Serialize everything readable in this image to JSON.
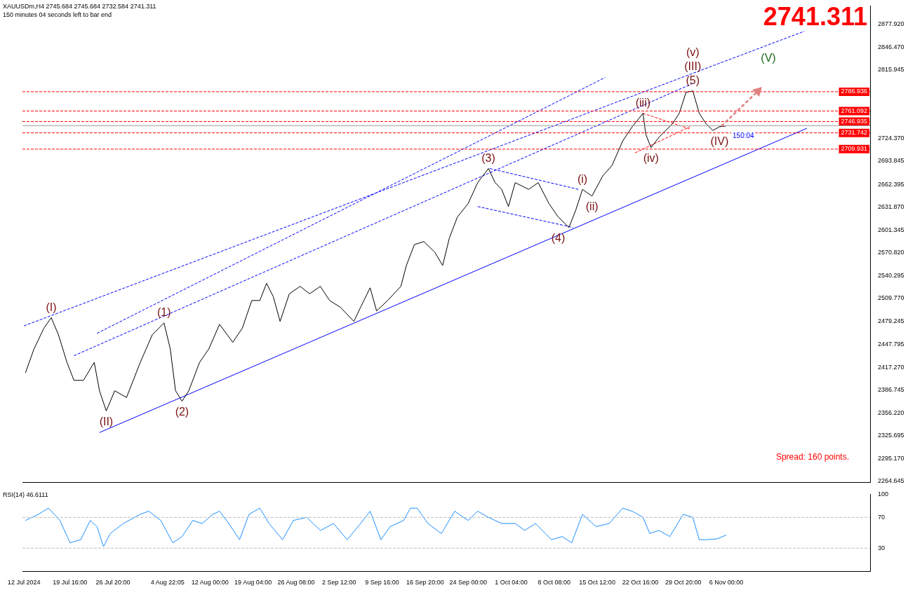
{
  "chart_data": [
    {
      "type": "line",
      "title": "XAUUSDm,H4  2745.684 2745.684 2732.584 2741.311",
      "subtitle": "150 minutes 04 seconds left to bar end",
      "xlim": [
        "2024-07-11T18:00",
        "2024-11-29T23:00"
      ],
      "ylim": [
        2263,
        2902
      ],
      "yticks": [
        {
          "value": 2877.92,
          "label": "2877.920"
        },
        {
          "value": 2846.47,
          "label": "2846.470"
        },
        {
          "value": 2815.945,
          "label": "2815.945"
        },
        {
          "value": 2724.37,
          "label": "2724.370"
        },
        {
          "value": 2693.845,
          "label": "2693.845"
        },
        {
          "value": 2662.395,
          "label": "2662.395"
        },
        {
          "value": 2631.87,
          "label": "2631.870"
        },
        {
          "value": 2601.345,
          "label": "2601.345"
        },
        {
          "value": 2570.82,
          "label": "2570.820"
        },
        {
          "value": 2540.295,
          "label": "2540.295"
        },
        {
          "value": 2509.77,
          "label": "2509.770"
        },
        {
          "value": 2479.245,
          "label": "2479.245"
        },
        {
          "value": 2447.795,
          "label": "2447.795"
        },
        {
          "value": 2417.27,
          "label": "2417.270"
        },
        {
          "value": 2386.745,
          "label": "2386.745"
        },
        {
          "value": 2356.22,
          "label": "2356.220"
        },
        {
          "value": 2325.695,
          "label": "2325.695"
        },
        {
          "value": 2295.17,
          "label": "2295.170"
        },
        {
          "value": 2264.645,
          "label": "2264.645"
        }
      ],
      "tick_labels": "y",
      "series": [
        {
          "color": "#000000",
          "x": [
            "2024-07-12T06:00",
            "2024-07-13T16:00",
            "2024-07-15T08:00",
            "2024-07-16T13:00",
            "2024-07-17T18:00",
            "2024-07-19T04:00",
            "2024-07-20T08:00",
            "2024-07-21T22:00",
            "2024-07-23T17:00",
            "2024-07-24T14:00",
            "2024-07-25T17:00",
            "2024-07-27T03:00",
            "2024-07-29T02:00",
            "2024-07-31T09:00",
            "2024-08-02T09:00",
            "2024-08-04T08:00",
            "2024-08-05T09:00",
            "2024-08-06T06:00",
            "2024-08-07T08:00",
            "2024-08-08T11:00",
            "2024-08-10T06:00",
            "2024-08-11T19:00",
            "2024-08-13T14:00",
            "2024-08-15T19:00",
            "2024-08-17T09:00",
            "2024-08-18T23:00",
            "2024-08-20T07:00",
            "2024-08-21T10:00",
            "2024-08-22T13:00",
            "2024-08-23T16:00",
            "2024-08-25T05:00",
            "2024-08-27T00:00",
            "2024-08-28T14:00",
            "2024-08-30T09:00",
            "2024-08-31T22:00",
            "2024-09-02T17:00",
            "2024-09-04T23:00",
            "2024-09-06T02:00",
            "2024-09-07T16:00",
            "2024-09-08T18:00",
            "2024-09-10T14:00",
            "2024-09-12T19:00",
            "2024-09-13T17:00",
            "2024-09-15T01:00",
            "2024-09-16T15:00",
            "2024-09-18T10:00",
            "2024-09-19T18:00",
            "2024-09-20T21:00",
            "2024-09-22T05:00",
            "2024-09-24T00:00",
            "2024-09-25T14:00",
            "2024-09-27T09:00",
            "2024-09-28T12:00",
            "2024-09-29T14:00",
            "2024-09-30T17:00",
            "2024-10-01T20:00",
            "2024-10-04T02:00",
            "2024-10-05T16:00",
            "2024-10-07T11:00",
            "2024-10-09T00:00",
            "2024-10-10T19:00",
            "2024-10-11T22:00",
            "2024-10-13T01:00",
            "2024-10-14T15:00",
            "2024-10-16T10:00",
            "2024-10-17T23:00",
            "2024-10-19T18:00",
            "2024-10-21T08:00",
            "2024-10-23T03:00",
            "2024-10-23T14:00",
            "2024-10-24T11:00",
            "2024-10-25T19:00",
            "2024-10-28T01:00",
            "2024-10-29T04:00",
            "2024-10-30T07:00",
            "2024-10-31T10:00",
            "2024-11-01T12:00",
            "2024-11-02T15:00",
            "2024-11-03T18:00",
            "2024-11-04T21:00",
            "2024-11-06T00:00"
          ],
          "values": [
            2410,
            2442,
            2470,
            2484,
            2461,
            2424,
            2400,
            2400,
            2424,
            2386,
            2359,
            2386,
            2377,
            2424,
            2461,
            2477,
            2442,
            2386,
            2372,
            2386,
            2424,
            2442,
            2475,
            2451,
            2470,
            2507,
            2507,
            2530,
            2512,
            2479,
            2516,
            2526,
            2516,
            2526,
            2507,
            2498,
            2479,
            2498,
            2524,
            2493,
            2507,
            2526,
            2554,
            2582,
            2586,
            2572,
            2554,
            2591,
            2619,
            2637,
            2665,
            2684,
            2665,
            2656,
            2633,
            2665,
            2656,
            2665,
            2637,
            2619,
            2605,
            2628,
            2656,
            2647,
            2674,
            2688,
            2721,
            2740,
            2758,
            2730,
            2712,
            2726,
            2744,
            2758,
            2786,
            2788,
            2758,
            2744,
            2735,
            2740,
            2741
          ]
        },
        {
          "type": "line",
          "color": "#0000ff",
          "line_style": "solid",
          "x": [
            "2024-07-24T14:00",
            "2024-11-19T11:00"
          ],
          "values": [
            2330,
            2738
          ]
        },
        {
          "type": "line",
          "color": "#0000ff",
          "line_style": "dashed",
          "x": [
            "2024-07-12T00:00",
            "2024-11-19T00:00"
          ],
          "values": [
            2473,
            2868
          ]
        },
        {
          "type": "line",
          "color": "#0000ff",
          "line_style": "dashed",
          "x": [
            "2024-07-24T04:00",
            "2024-10-16T20:00"
          ],
          "values": [
            2463,
            2806
          ]
        },
        {
          "type": "line",
          "color": "#0000ff",
          "line_style": "dashed",
          "x": [
            "2024-07-20T08:00",
            "2024-10-31T10:00"
          ],
          "values": [
            2433,
            2798
          ]
        },
        {
          "type": "line",
          "color": "#0000ff",
          "line_style": "dashed",
          "x": [
            "2024-09-27T14:00",
            "2024-10-12T09:00"
          ],
          "values": [
            2684,
            2656
          ]
        },
        {
          "type": "line",
          "color": "#0000ff",
          "line_style": "dashed",
          "x": [
            "2024-09-25T14:00",
            "2024-10-11T11:00"
          ],
          "values": [
            2633,
            2605
          ]
        },
        {
          "type": "line",
          "color": "#ff0000",
          "line_style": "dashed",
          "x": [
            "2024-10-21T19:00",
            "2024-10-30T23:00"
          ],
          "values": [
            2705,
            2740
          ]
        },
        {
          "type": "line",
          "color": "#ff0000",
          "line_style": "dashed",
          "x": [
            "2024-10-23T03:00",
            "2024-10-30T23:00"
          ],
          "values": [
            2758,
            2737
          ]
        }
      ],
      "ref_lines": [
        {
          "axis": "y",
          "value": 2786.936,
          "label": "2786.936",
          "color": "#ff0000",
          "line_style": "dashed"
        },
        {
          "axis": "y",
          "value": 2761.092,
          "label": "2761.092",
          "color": "#ff0000",
          "line_style": "dashed"
        },
        {
          "axis": "y",
          "value": 2746.935,
          "label": "2746.935",
          "color": "#ff0000",
          "line_style": "dashed"
        },
        {
          "axis": "y",
          "value": 2741.311,
          "color": "#a0a0a0",
          "line_style": "solid"
        },
        {
          "axis": "y",
          "value": 2731.742,
          "label": "2731.742",
          "color": "#ff0000",
          "line_style": "dashed"
        },
        {
          "axis": "y",
          "value": 2709.931,
          "label": "2709.931",
          "color": "#ff0000",
          "line_style": "dashed"
        }
      ],
      "annotations": [
        "2741.311",
        "Spread: 160 points.",
        "(V)",
        {
          "text": "150:04",
          "x": "2024-11-06T00:00",
          "y": 2741
        },
        {
          "text": "(I)",
          "x": "2024-07-16T13:00",
          "y": 2484
        },
        {
          "text": "(II)",
          "x": "2024-07-25T17:00",
          "y": 2359
        },
        {
          "text": "(1)",
          "x": "2024-08-04T08:00",
          "y": 2477
        },
        {
          "text": "(2)",
          "x": "2024-08-07T08:00",
          "y": 2372
        },
        {
          "text": "(3)",
          "x": "2024-09-27T09:00",
          "y": 2684
        },
        {
          "text": "(4)",
          "x": "2024-10-09T00:00",
          "y": 2605
        },
        {
          "text": "(5)",
          "x": "2024-10-31T10:00",
          "y": 2788
        },
        {
          "text": "(III)",
          "x": "2024-10-31T10:00",
          "y": 2788
        },
        {
          "text": "(IV)",
          "x": "2024-11-04T21:00",
          "y": 2735
        },
        {
          "text": "(i)",
          "x": "2024-10-13T01:00",
          "y": 2656
        },
        {
          "text": "(ii)",
          "x": "2024-10-14T15:00",
          "y": 2647
        },
        {
          "text": "(iii)",
          "x": "2024-10-23T03:00",
          "y": 2758
        },
        {
          "text": "(iv)",
          "x": "2024-10-24T11:00",
          "y": 2712
        },
        {
          "text": "(v)",
          "x": "2024-10-31T10:00",
          "y": 2788
        }
      ]
    },
    {
      "type": "line",
      "title": "RSI(14) 46.6111",
      "xlim": [
        "2024-07-11T18:00",
        "2024-11-29T23:00"
      ],
      "xticks": [
        {
          "value": "2024-07-12T00:00",
          "label": "12 Jul 2024"
        },
        {
          "value": "2024-07-19T16:00",
          "label": "19 Jul 16:00"
        },
        {
          "value": "2024-07-26T20:00",
          "label": "26 Jul 20:00"
        },
        {
          "value": "2024-08-04T22:05",
          "label": "4 Aug 22:05"
        },
        {
          "value": "2024-08-12T00:00",
          "label": "12 Aug 00:00"
        },
        {
          "value": "2024-08-19T04:00",
          "label": "19 Aug 04:00"
        },
        {
          "value": "2024-08-26T08:00",
          "label": "26 Aug 08:00"
        },
        {
          "value": "2024-09-02T12:00",
          "label": "2 Sep 12:00"
        },
        {
          "value": "2024-09-09T16:00",
          "label": "9 Sep 16:00"
        },
        {
          "value": "2024-09-16T20:00",
          "label": "16 Sep 20:00"
        },
        {
          "value": "2024-09-24T00:00",
          "label": "24 Sep 00:00"
        },
        {
          "value": "2024-10-01T04:00",
          "label": "1 Oct 04:00"
        },
        {
          "value": "2024-10-08T08:00",
          "label": "8 Oct 08:00"
        },
        {
          "value": "2024-10-15T12:00",
          "label": "15 Oct 12:00"
        },
        {
          "value": "2024-10-22T16:00",
          "label": "22 Oct 16:00"
        },
        {
          "value": "2024-10-29T20:00",
          "label": "29 Oct 20:00"
        },
        {
          "value": "2024-11-06T00:00",
          "label": "6 Nov 00:00"
        }
      ],
      "ylim": [
        0,
        100
      ],
      "yticks": [
        30,
        70,
        100
      ],
      "series": [
        {
          "color": "#1e90ff",
          "x": [
            "2024-07-12T06:00",
            "2024-07-14T10:00",
            "2024-07-16T02:00",
            "2024-07-18T00:00",
            "2024-07-19T16:00",
            "2024-07-21T11:00",
            "2024-07-23T01:00",
            "2024-07-24T04:00",
            "2024-07-25T06:00",
            "2024-07-26T09:00",
            "2024-07-28T13:00",
            "2024-07-31T09:00",
            "2024-08-01T19:00",
            "2024-08-03T19:00",
            "2024-08-05T19:00",
            "2024-08-07T08:00",
            "2024-08-09T03:00",
            "2024-08-10T16:00",
            "2024-08-12T11:00",
            "2024-08-13T14:00",
            "2024-08-15T03:00",
            "2024-08-16T22:00",
            "2024-08-18T12:00",
            "2024-08-20T07:00",
            "2024-08-21T20:00",
            "2024-08-24T02:00",
            "2024-08-25T21:00",
            "2024-08-28T03:00",
            "2024-08-30T09:00",
            "2024-09-01T14:00",
            "2024-09-03T20:00",
            "2024-09-06T02:00",
            "2024-09-07T16:00",
            "2024-09-09T11:00",
            "2024-09-11T00:00",
            "2024-09-13T06:00",
            "2024-09-14T09:00",
            "2024-09-15T12:00",
            "2024-09-17T07:00",
            "2024-09-19T13:00",
            "2024-09-21T18:00",
            "2024-09-24T00:00",
            "2024-09-25T14:00",
            "2024-09-27T09:00",
            "2024-09-29T14:00",
            "2024-10-01T20:00",
            "2024-10-03T10:00",
            "2024-10-05T05:00",
            "2024-10-07T21:00",
            "2024-10-09T16:00",
            "2024-10-11T06:00",
            "2024-10-13T01:00",
            "2024-10-15T07:00",
            "2024-10-17T12:00",
            "2024-10-19T18:00",
            "2024-10-21T08:00",
            "2024-10-23T03:00",
            "2024-10-24T06:00",
            "2024-10-25T19:00",
            "2024-10-27T14:00",
            "2024-10-29T20:00",
            "2024-10-31T10:00",
            "2024-11-01T12:00",
            "2024-11-02T15:00",
            "2024-11-04T10:00",
            "2024-11-06T00:00"
          ],
          "values": [
            66,
            74,
            82,
            66,
            37,
            41,
            66,
            58,
            32,
            49,
            62,
            74,
            78,
            66,
            37,
            45,
            66,
            62,
            74,
            78,
            62,
            41,
            74,
            82,
            62,
            41,
            66,
            70,
            53,
            62,
            41,
            62,
            78,
            41,
            58,
            66,
            82,
            82,
            62,
            49,
            78,
            66,
            78,
            70,
            62,
            62,
            53,
            62,
            41,
            45,
            37,
            74,
            58,
            62,
            82,
            78,
            70,
            49,
            53,
            45,
            74,
            70,
            41,
            41,
            42,
            47
          ]
        }
      ],
      "ref_lines": [
        {
          "axis": "y",
          "value": 30,
          "color": "#c0c0c0",
          "line_style": "dashed"
        },
        {
          "axis": "y",
          "value": 70,
          "color": "#c0c0c0",
          "line_style": "dashed"
        }
      ]
    }
  ]
}
